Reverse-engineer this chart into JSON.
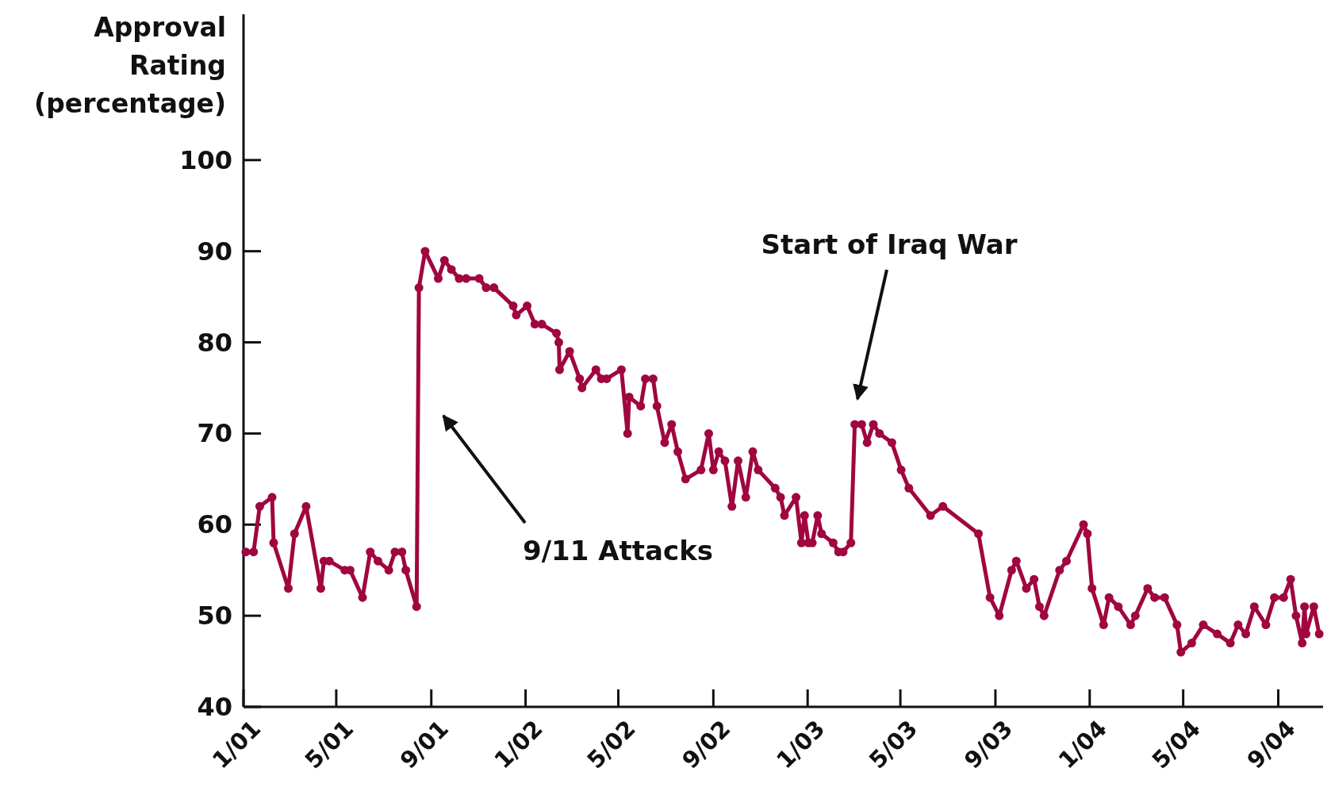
{
  "chart_data": {
    "type": "line",
    "ylabel": "Approval Rating (percentage)",
    "x": [
      "2001-01-04",
      "2001-01-14",
      "2001-01-22",
      "2001-02-07",
      "2001-02-09",
      "2001-02-28",
      "2001-03-08",
      "2001-03-23",
      "2001-04-11",
      "2001-04-15",
      "2001-04-22",
      "2001-05-12",
      "2001-05-19",
      "2001-06-04",
      "2001-06-14",
      "2001-06-24",
      "2001-07-08",
      "2001-07-16",
      "2001-07-25",
      "2001-07-30",
      "2001-08-13",
      "2001-08-16",
      "2001-08-24",
      "2001-09-10",
      "2001-09-18",
      "2001-09-27",
      "2001-10-07",
      "2001-10-16",
      "2001-11-02",
      "2001-11-11",
      "2001-11-21",
      "2001-12-16",
      "2001-12-20",
      "2002-01-03",
      "2002-01-13",
      "2002-01-22",
      "2002-02-10",
      "2002-02-13",
      "2002-02-14",
      "2002-02-27",
      "2002-03-12",
      "2002-03-15",
      "2002-04-02",
      "2002-04-09",
      "2002-04-16",
      "2002-05-05",
      "2002-05-13",
      "2002-05-15",
      "2002-05-30",
      "2002-06-05",
      "2002-06-15",
      "2002-06-20",
      "2002-06-30",
      "2002-07-09",
      "2002-07-17",
      "2002-07-27",
      "2002-08-16",
      "2002-08-26",
      "2002-09-01",
      "2002-09-08",
      "2002-09-16",
      "2002-09-25",
      "2002-10-03",
      "2002-10-13",
      "2002-10-22",
      "2002-10-29",
      "2002-11-20",
      "2002-11-27",
      "2002-12-02",
      "2002-12-17",
      "2002-12-24",
      "2002-12-28",
      "2003-01-02",
      "2003-01-07",
      "2003-01-14",
      "2003-01-19",
      "2003-02-03",
      "2003-02-10",
      "2003-02-16",
      "2003-02-26",
      "2003-03-03",
      "2003-03-12",
      "2003-03-19",
      "2003-03-27",
      "2003-04-04",
      "2003-04-20",
      "2003-05-02",
      "2003-05-12",
      "2003-06-09",
      "2003-06-25",
      "2003-08-10",
      "2003-08-25",
      "2003-09-06",
      "2003-09-22",
      "2003-09-28",
      "2003-10-11",
      "2003-10-21",
      "2003-10-28",
      "2003-11-03",
      "2003-11-23",
      "2003-12-02",
      "2003-12-24",
      "2003-12-29",
      "2004-01-04",
      "2004-01-19",
      "2004-01-26",
      "2004-02-07",
      "2004-02-23",
      "2004-02-29",
      "2004-03-16",
      "2004-03-25",
      "2004-04-07",
      "2004-04-23",
      "2004-04-28",
      "2004-05-12",
      "2004-05-27",
      "2004-06-14",
      "2004-07-01",
      "2004-07-11",
      "2004-07-21",
      "2004-08-01",
      "2004-08-16",
      "2004-08-27",
      "2004-09-08",
      "2004-09-17",
      "2004-09-24",
      "2004-10-02",
      "2004-10-05",
      "2004-10-07",
      "2004-10-17",
      "2004-10-24"
    ],
    "series": [
      {
        "color": "#a0063f",
        "values": [
          57,
          57,
          62,
          63,
          58,
          53,
          59,
          62,
          53,
          56,
          56,
          55,
          55,
          52,
          57,
          56,
          55,
          57,
          57,
          55,
          51,
          86,
          90,
          87,
          89,
          88,
          87,
          87,
          87,
          86,
          86,
          84,
          83,
          84,
          82,
          82,
          81,
          80,
          77,
          79,
          76,
          75,
          77,
          76,
          76,
          77,
          70,
          74,
          73,
          76,
          76,
          73,
          69,
          71,
          68,
          65,
          66,
          70,
          66,
          68,
          67,
          62,
          67,
          63,
          68,
          66,
          64,
          63,
          61,
          63,
          58,
          61,
          58,
          58,
          61,
          59,
          58,
          57,
          57,
          58,
          71,
          71,
          69,
          71,
          70,
          69,
          66,
          64,
          61,
          62,
          59,
          52,
          50,
          55,
          56,
          53,
          54,
          51,
          50,
          55,
          56,
          60,
          59,
          53,
          49,
          52,
          51,
          49,
          50,
          53,
          52,
          52,
          49,
          46,
          47,
          49,
          48,
          47,
          49,
          48,
          51,
          49,
          52,
          52,
          54,
          50,
          47,
          51,
          48,
          51,
          48
        ]
      }
    ],
    "xlim": [
      "2001-01-01",
      "2004-10-29"
    ],
    "xticks": [
      {
        "value": "2001-01",
        "label": "1/01"
      },
      {
        "value": "2001-05",
        "label": "5/01"
      },
      {
        "value": "2001-09",
        "label": "9/01"
      },
      {
        "value": "2002-01",
        "label": "1/02"
      },
      {
        "value": "2002-05",
        "label": "5/02"
      },
      {
        "value": "2002-09",
        "label": "9/02"
      },
      {
        "value": "2003-01",
        "label": "1/03"
      },
      {
        "value": "2003-05",
        "label": "5/03"
      },
      {
        "value": "2003-09",
        "label": "9/03"
      },
      {
        "value": "2004-01",
        "label": "1/04"
      },
      {
        "value": "2004-05",
        "label": "5/04"
      },
      {
        "value": "2004-09",
        "label": "9/04"
      }
    ],
    "ylim": [
      40,
      116
    ],
    "yticks": [
      40,
      50,
      60,
      70,
      80,
      90,
      100
    ],
    "annotations": [
      "9/11 Attacks",
      "Start of Iraq War"
    ],
    "marker": "circle",
    "line_style": "solid",
    "grid": false
  }
}
